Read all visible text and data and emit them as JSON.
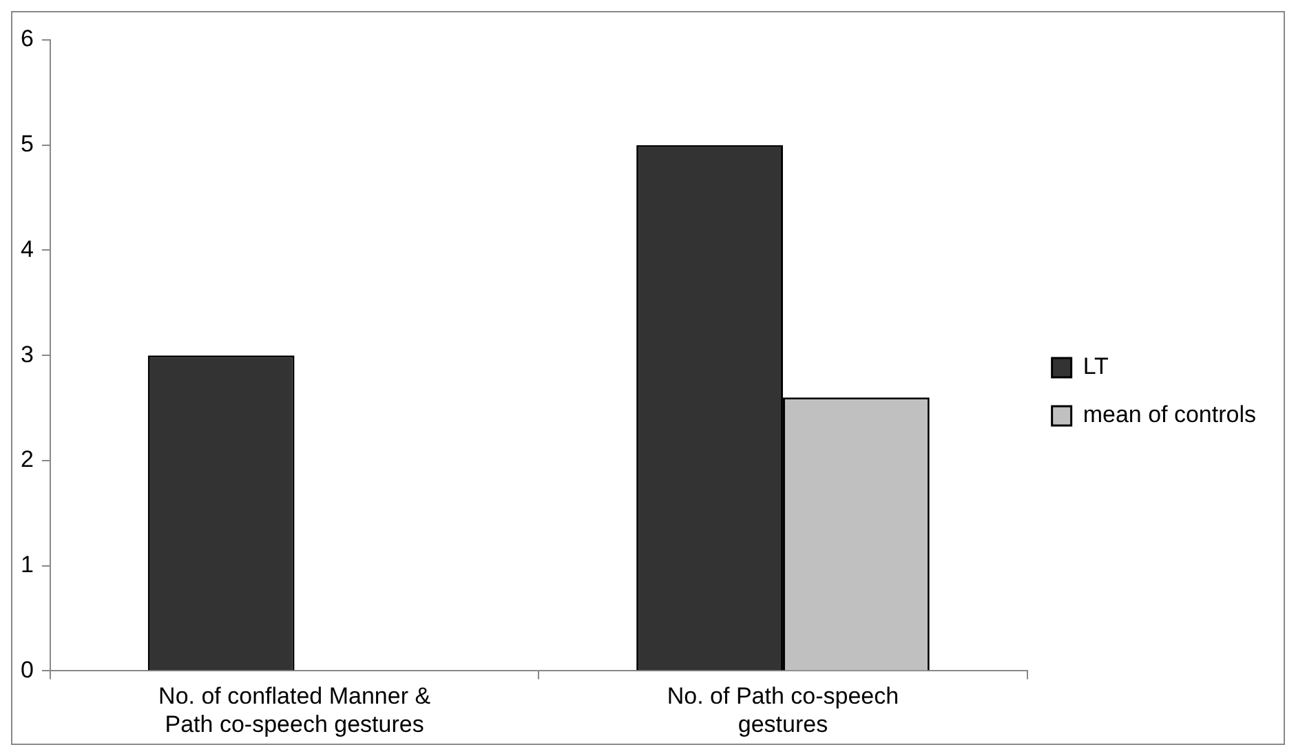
{
  "chart_data": {
    "type": "bar",
    "categories": [
      "No. of conflated Manner & Path co-speech gestures",
      "No. of Path co-speech gestures"
    ],
    "series": [
      {
        "name": "LT",
        "color": "#333333",
        "values": [
          3,
          5
        ]
      },
      {
        "name": "mean of controls",
        "color": "#c0c0c0",
        "values": [
          0,
          2.6
        ]
      }
    ],
    "ylim": [
      0,
      6
    ],
    "yticks": [
      0,
      1,
      2,
      3,
      4,
      5,
      6
    ],
    "grid": false,
    "legend": "right"
  }
}
